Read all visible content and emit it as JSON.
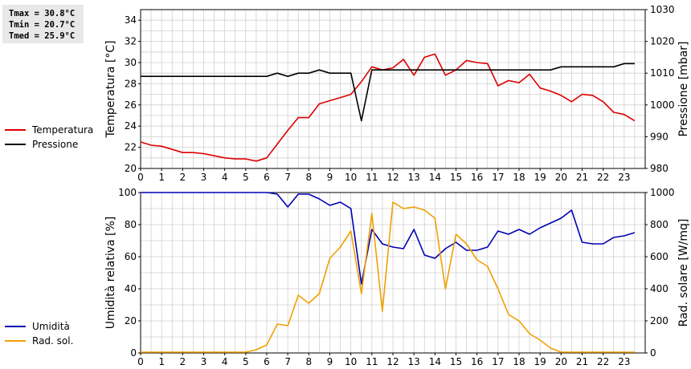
{
  "stats": {
    "tmax": "Tmax = 30.8°C",
    "tmin": "Tmin = 20.7°C",
    "tmed": "Tmed = 25.9°C"
  },
  "colors": {
    "temperature": "#dd0000",
    "pressure": "#000000",
    "humidity": "#0000b4",
    "radiation": "#f0a000",
    "grid": "#d0d0d0"
  },
  "chart_data": [
    {
      "type": "line",
      "x_ticks": [
        "0",
        "1",
        "2",
        "3",
        "4",
        "5",
        "6",
        "7",
        "8",
        "9",
        "10",
        "11",
        "12",
        "13",
        "14",
        "15",
        "16",
        "17",
        "18",
        "19",
        "20",
        "21",
        "22",
        "23"
      ],
      "xlim": [
        0,
        24
      ],
      "ylabel": "Temperatura [°C]",
      "ylim": [
        20,
        35
      ],
      "y_ticks": [
        "20",
        "22",
        "24",
        "26",
        "28",
        "30",
        "32",
        "34"
      ],
      "y2label": "Pressione [mbar]",
      "y2lim": [
        980,
        1030
      ],
      "y2_ticks": [
        "980",
        "990",
        "1000",
        "1010",
        "1020",
        "1030"
      ],
      "legend_position": "left",
      "series": [
        {
          "name": "Temperatura",
          "axis": "left",
          "x": [
            0,
            0.5,
            1,
            1.5,
            2,
            2.5,
            3,
            3.5,
            4,
            4.5,
            5,
            5.5,
            6,
            6.5,
            7,
            7.5,
            8,
            8.5,
            9,
            9.5,
            10,
            10.5,
            11,
            11.5,
            12,
            12.5,
            13,
            13.5,
            14,
            14.5,
            15,
            15.5,
            16,
            16.5,
            17,
            17.5,
            18,
            18.5,
            19,
            19.5,
            20,
            20.5,
            21,
            21.5,
            22,
            22.5,
            23,
            23.5
          ],
          "values": [
            22.5,
            22.2,
            22.1,
            21.8,
            21.5,
            21.5,
            21.4,
            21.2,
            21.0,
            20.9,
            20.9,
            20.7,
            21.0,
            22.3,
            23.6,
            24.8,
            24.8,
            26.1,
            26.4,
            26.7,
            27.0,
            28.2,
            29.6,
            29.3,
            29.5,
            30.3,
            28.8,
            30.5,
            30.8,
            28.8,
            29.3,
            30.2,
            30.0,
            29.9,
            27.8,
            28.3,
            28.1,
            28.9,
            27.6,
            27.3,
            26.9,
            26.3,
            27.0,
            26.9,
            26.3,
            25.3,
            25.1,
            24.5
          ]
        },
        {
          "name": "Pressione",
          "axis": "right",
          "x": [
            0,
            0.5,
            1,
            1.5,
            2,
            2.5,
            3,
            3.5,
            4,
            4.5,
            5,
            5.5,
            6,
            6.5,
            7,
            7.5,
            8,
            8.5,
            9,
            9.5,
            10,
            10.5,
            11,
            11.5,
            12,
            12.5,
            13,
            13.5,
            14,
            14.5,
            15,
            15.5,
            16,
            16.5,
            17,
            17.5,
            18,
            18.5,
            19,
            19.5,
            20,
            20.5,
            21,
            21.5,
            22,
            22.5,
            23,
            23.5
          ],
          "values": [
            1009,
            1009,
            1009,
            1009,
            1009,
            1009,
            1009,
            1009,
            1009,
            1009,
            1009,
            1009,
            1009,
            1010,
            1009,
            1010,
            1010,
            1011,
            1010,
            1010,
            1010,
            995,
            1011,
            1011,
            1011,
            1011,
            1011,
            1011,
            1011,
            1011,
            1011,
            1011,
            1011,
            1011,
            1011,
            1011,
            1011,
            1011,
            1011,
            1011,
            1012,
            1012,
            1012,
            1012,
            1012,
            1012,
            1013,
            1013
          ]
        }
      ]
    },
    {
      "type": "line",
      "x_ticks": [
        "0",
        "1",
        "2",
        "3",
        "4",
        "5",
        "6",
        "7",
        "8",
        "9",
        "10",
        "11",
        "12",
        "13",
        "14",
        "15",
        "16",
        "17",
        "18",
        "19",
        "20",
        "21",
        "22",
        "23"
      ],
      "xlim": [
        0,
        24
      ],
      "ylabel": "Umidità relativa [%]",
      "ylim": [
        0,
        100
      ],
      "y_ticks": [
        "0",
        "20",
        "40",
        "60",
        "80",
        "100"
      ],
      "y2label": "Rad. solare [W/mq]",
      "y2lim": [
        0,
        1000
      ],
      "y2_ticks": [
        "0",
        "200",
        "400",
        "600",
        "800",
        "1000"
      ],
      "legend_position": "left",
      "series": [
        {
          "name": "Umidità",
          "axis": "left",
          "x": [
            0,
            0.5,
            1,
            1.5,
            2,
            2.5,
            3,
            3.5,
            4,
            4.5,
            5,
            5.5,
            6,
            6.5,
            7,
            7.5,
            8,
            8.5,
            9,
            9.5,
            10,
            10.5,
            11,
            11.5,
            12,
            12.5,
            13,
            13.5,
            14,
            14.5,
            15,
            15.5,
            16,
            16.5,
            17,
            17.5,
            18,
            18.5,
            19,
            19.5,
            20,
            20.5,
            21,
            21.5,
            22,
            22.5,
            23,
            23.5
          ],
          "values": [
            100,
            100,
            100,
            100,
            100,
            100,
            100,
            100,
            100,
            100,
            100,
            100,
            100,
            99,
            91,
            99,
            99,
            96,
            92,
            94,
            90,
            43,
            77,
            68,
            66,
            65,
            77,
            61,
            59,
            65,
            69,
            64,
            64,
            66,
            76,
            74,
            77,
            74,
            78,
            81,
            84,
            89,
            69,
            68,
            68,
            72,
            73,
            75
          ]
        },
        {
          "name": "Rad. sol.",
          "axis": "right",
          "x": [
            0,
            0.5,
            1,
            1.5,
            2,
            2.5,
            3,
            3.5,
            4,
            4.5,
            5,
            5.5,
            6,
            6.5,
            7,
            7.5,
            8,
            8.5,
            9,
            9.5,
            10,
            10.5,
            11,
            11.5,
            12,
            12.5,
            13,
            13.5,
            14,
            14.5,
            15,
            15.5,
            16,
            16.5,
            17,
            17.5,
            18,
            18.5,
            19,
            19.5,
            20,
            20.5,
            21,
            21.5,
            22,
            22.5,
            23,
            23.5
          ],
          "values": [
            5,
            5,
            5,
            5,
            5,
            5,
            5,
            5,
            5,
            5,
            5,
            20,
            50,
            180,
            170,
            360,
            310,
            370,
            590,
            660,
            760,
            370,
            870,
            260,
            940,
            900,
            910,
            890,
            840,
            400,
            740,
            680,
            580,
            540,
            400,
            240,
            200,
            120,
            80,
            30,
            5,
            5,
            5,
            5,
            5,
            5,
            5,
            5
          ]
        }
      ]
    }
  ]
}
